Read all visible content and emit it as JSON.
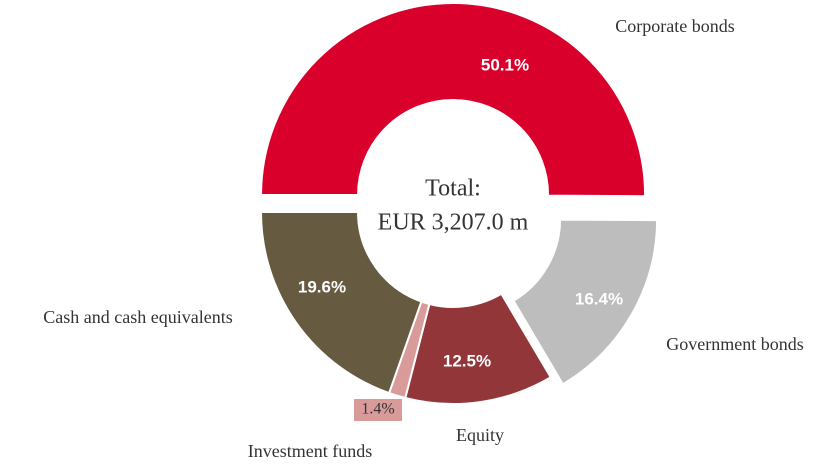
{
  "chart_data": {
    "type": "donut",
    "center_label": [
      "Total:",
      "EUR 3,207.0 m"
    ],
    "categories": [
      "Corporate bonds",
      "Government bonds",
      "Equity",
      "Investment funds",
      "Cash and cash equivalents"
    ],
    "values": [
      50.1,
      16.4,
      12.5,
      1.4,
      19.6
    ],
    "value_labels": [
      "50.1%",
      "16.4%",
      "12.5%",
      "1.4%",
      "19.6%"
    ],
    "colors": [
      "#d9002b",
      "#bdbdbd",
      "#93363a",
      "#d99a9a",
      "#665a40"
    ]
  }
}
